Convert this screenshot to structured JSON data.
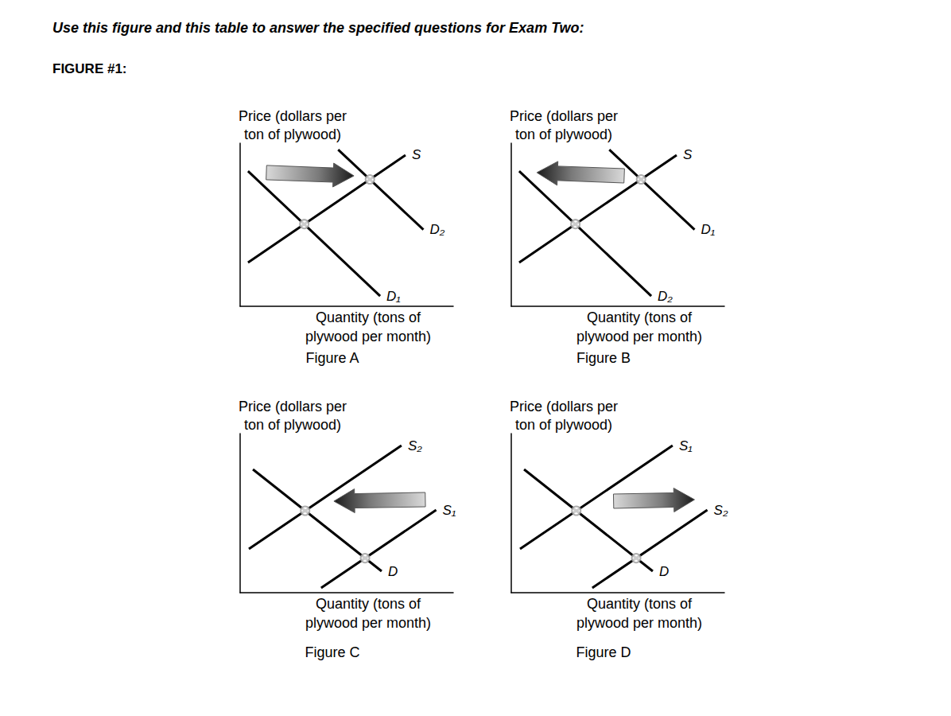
{
  "header": {
    "instruction": "Use this figure and this table to answer the specified questions for Exam Two:",
    "figure_label": "FIGURE #1:"
  },
  "chart_data": [
    {
      "type": "line",
      "title": "Figure A",
      "xlabel": "Quantity (tons of\nplywood per month)",
      "ylabel": "Price (dollars per\nton of plywood)",
      "xlim": [
        0,
        10
      ],
      "ylim": [
        0,
        10
      ],
      "tick_labels": false,
      "grid": false,
      "series": [
        {
          "name": "S",
          "color": "#000000",
          "x": [
            0.37,
            7.76
          ],
          "values": [
            2.68,
            9.27
          ]
        },
        {
          "name": "D₂",
          "color": "#000000",
          "x": [
            4.6,
            8.6
          ],
          "values": [
            9.6,
            4.7
          ]
        },
        {
          "name": "D₁",
          "color": "#000000",
          "x": [
            0.37,
            6.57
          ],
          "values": [
            8.29,
            0.63
          ]
        }
      ],
      "points": {
        "x": [
          3.01,
          6.09
        ],
        "y": [
          5.04,
          7.78
        ]
      },
      "arrow": {
        "x": [
          1.23,
          5.34
        ],
        "y": [
          8.2,
          8.0
        ]
      }
    },
    {
      "type": "line",
      "title": "Figure B",
      "xlabel": "Quantity (tons of\nplywood per month)",
      "ylabel": "Price (dollars per\nton of plywood)",
      "xlim": [
        0,
        10
      ],
      "ylim": [
        0,
        10
      ],
      "tick_labels": false,
      "grid": false,
      "series": [
        {
          "name": "S",
          "color": "#000000",
          "x": [
            0.37,
            7.76
          ],
          "values": [
            2.68,
            9.27
          ]
        },
        {
          "name": "D₁",
          "color": "#000000",
          "x": [
            4.6,
            8.6
          ],
          "values": [
            9.6,
            4.7
          ]
        },
        {
          "name": "D₂",
          "color": "#000000",
          "x": [
            0.37,
            6.57
          ],
          "values": [
            8.29,
            0.63
          ]
        }
      ],
      "points": {
        "x": [
          3.01,
          6.09
        ],
        "y": [
          5.04,
          7.78
        ]
      },
      "arrow": {
        "x": [
          5.3,
          1.2
        ],
        "y": [
          8.0,
          8.2
        ]
      }
    },
    {
      "type": "line",
      "title": "Figure C",
      "xlabel": "Quantity (tons of\nplywood per month)",
      "ylabel": "Price (dollars per\nton of plywood)",
      "xlim": [
        0,
        10
      ],
      "ylim": [
        0,
        10
      ],
      "tick_labels": false,
      "grid": false,
      "series": [
        {
          "name": "S₂",
          "color": "#000000",
          "x": [
            0.41,
            7.57
          ],
          "values": [
            2.75,
            9.25
          ]
        },
        {
          "name": "S₁",
          "color": "#000000",
          "x": [
            3.8,
            9.2
          ],
          "values": [
            0.3,
            5.2
          ]
        },
        {
          "name": "D",
          "color": "#000000",
          "x": [
            0.6,
            6.64
          ],
          "values": [
            7.75,
            1.35
          ]
        }
      ],
      "points": {
        "x": [
          3.05,
          5.86
        ],
        "y": [
          5.15,
          2.17
        ]
      },
      "arrow": {
        "x": [
          8.69,
          4.4
        ],
        "y": [
          5.85,
          5.75
        ]
      }
    },
    {
      "type": "line",
      "title": "Figure D",
      "xlabel": "Quantity (tons of\nplywood per month)",
      "ylabel": "Price (dollars per\nton of plywood)",
      "xlim": [
        0,
        10
      ],
      "ylim": [
        0,
        10
      ],
      "tick_labels": false,
      "grid": false,
      "series": [
        {
          "name": "S₁",
          "color": "#000000",
          "x": [
            0.41,
            7.57
          ],
          "values": [
            2.75,
            9.25
          ]
        },
        {
          "name": "S₂",
          "color": "#000000",
          "x": [
            3.8,
            9.2
          ],
          "values": [
            0.3,
            5.2
          ]
        },
        {
          "name": "D",
          "color": "#000000",
          "x": [
            0.6,
            6.64
          ],
          "values": [
            7.75,
            1.35
          ]
        }
      ],
      "points": {
        "x": [
          3.05,
          5.86
        ],
        "y": [
          5.15,
          2.17
        ]
      },
      "arrow": {
        "x": [
          4.8,
          8.6
        ],
        "y": [
          5.75,
          5.85
        ]
      }
    }
  ]
}
